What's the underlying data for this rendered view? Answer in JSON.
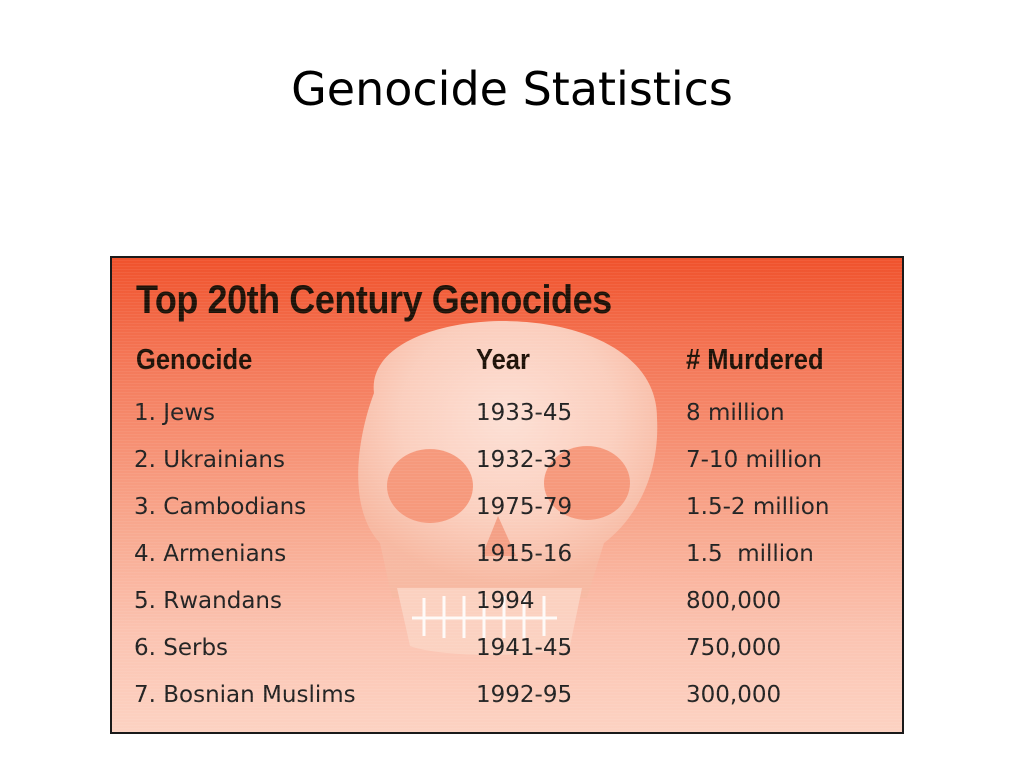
{
  "slide": {
    "title": "Genocide Statistics"
  },
  "graphic": {
    "title": "Top 20th Century Genocides",
    "columns": [
      "Genocide",
      "Year",
      "# Murdered"
    ],
    "rows": [
      {
        "genocide": "1. Jews",
        "year": "1933-45",
        "murdered": "8 million"
      },
      {
        "genocide": "2. Ukrainians",
        "year": "1932-33",
        "murdered": "7-10 million"
      },
      {
        "genocide": "3. Cambodians",
        "year": "1975-79",
        "murdered": "1.5-2 million"
      },
      {
        "genocide": "4. Armenians",
        "year": "1915-16",
        "murdered": "1.5  million"
      },
      {
        "genocide": "5. Rwandans",
        "year": "1994",
        "murdered": "800,000"
      },
      {
        "genocide": "6. Serbs",
        "year": "1941-45",
        "murdered": "750,000"
      },
      {
        "genocide": "7. Bosnian Muslims",
        "year": "1992-95",
        "murdered": "300,000"
      }
    ],
    "colors": {
      "background_top": "#f0522c",
      "background_bottom": "#fcd2c2",
      "skull": "#fbd9cc",
      "text": "#1e1208"
    },
    "background_icon": "skull-icon"
  }
}
